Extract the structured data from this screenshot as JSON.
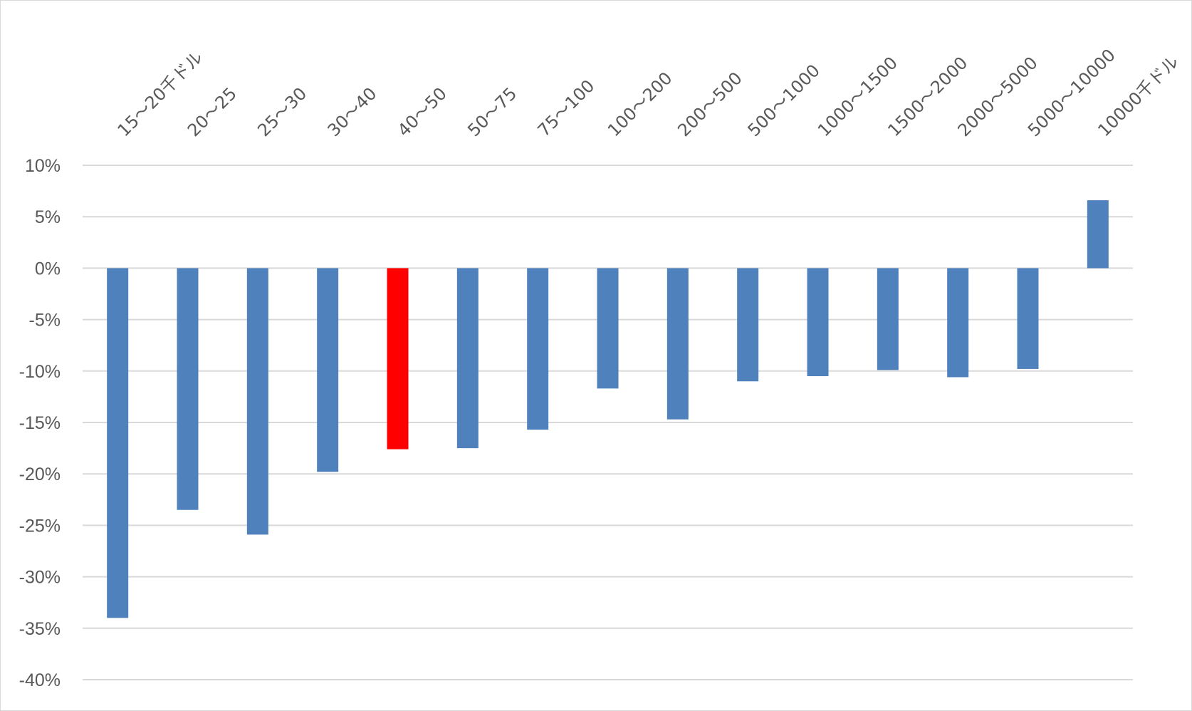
{
  "chart_data": {
    "type": "bar",
    "title": "",
    "xlabel": "",
    "ylabel": "",
    "categories": [
      "15～20千ドル",
      "20～25",
      "25～30",
      "30～40",
      "40～50",
      "50～75",
      "75～100",
      "100～200",
      "200～500",
      "500～1000",
      "1000～1500",
      "1500～2000",
      "2000～5000",
      "5000～10000",
      "10000千ドル"
    ],
    "series": [
      {
        "values": [
          -34.0,
          -23.5,
          -25.9,
          -19.8,
          -17.6,
          -17.5,
          -15.7,
          -11.7,
          -14.7,
          -11.0,
          -10.5,
          -9.9,
          -10.6,
          -9.8,
          6.6
        ]
      }
    ],
    "ylim": [
      -40,
      10
    ],
    "yticks": [
      10,
      5,
      0,
      -5,
      -10,
      -15,
      -20,
      -25,
      -30,
      -35,
      -40
    ],
    "ytick_labels": [
      "10%",
      "5%",
      "0%",
      "-5%",
      "-10%",
      "-15%",
      "-20%",
      "-25%",
      "-30%",
      "-35%",
      "-40%"
    ],
    "grid": true,
    "legend": "none",
    "x_label_position": "top",
    "colors": {
      "default": "#4f81bd",
      "highlight": "#ff0000",
      "grid": "#d9d9d9",
      "text": "#595959"
    },
    "highlight_index": 4
  }
}
